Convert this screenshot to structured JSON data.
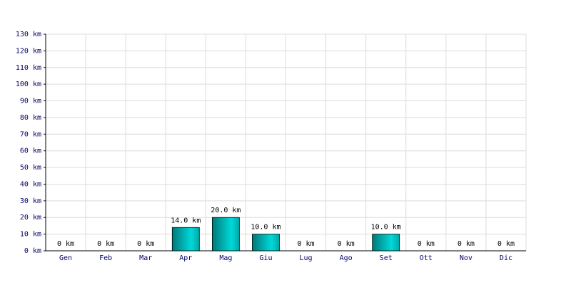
{
  "chart_data": {
    "type": "bar",
    "categories": [
      "Gen",
      "Feb",
      "Mar",
      "Apr",
      "Mag",
      "Giu",
      "Lug",
      "Ago",
      "Set",
      "Ott",
      "Nov",
      "Dic"
    ],
    "values": [
      0,
      0,
      0,
      14,
      20,
      10,
      0,
      0,
      10,
      0,
      0,
      0
    ],
    "value_labels": [
      "0 km",
      "0 km",
      "0 km",
      "14.0 km",
      "20.0 km",
      "10.0 km",
      "0 km",
      "0 km",
      "10.0 km",
      "0 km",
      "0 km",
      "0 km"
    ],
    "color": "#00d8d8",
    "ylim": [
      0,
      130
    ],
    "yticks": [
      {
        "value": 0,
        "label": "0 km"
      },
      {
        "value": 10,
        "label": "10 km"
      },
      {
        "value": 20,
        "label": "20 km"
      },
      {
        "value": 30,
        "label": "30 km"
      },
      {
        "value": 40,
        "label": "40 km"
      },
      {
        "value": 50,
        "label": "50 km"
      },
      {
        "value": 60,
        "label": "60 km"
      },
      {
        "value": 70,
        "label": "70 km"
      },
      {
        "value": 80,
        "label": "80 km"
      },
      {
        "value": 90,
        "label": "90 km"
      },
      {
        "value": 100,
        "label": "100 km"
      },
      {
        "value": 110,
        "label": "110 km"
      },
      {
        "value": 120,
        "label": "120 km"
      },
      {
        "value": 130,
        "label": "130 km"
      }
    ],
    "grid": true
  }
}
